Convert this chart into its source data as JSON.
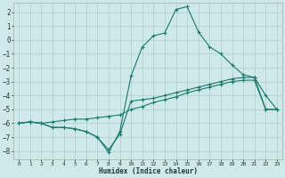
{
  "xlabel": "Humidex (Indice chaleur)",
  "background_color": "#cfe8e8",
  "grid_color": "#aacfcf",
  "line_color": "#1a7a6e",
  "xlim": [
    -0.5,
    23.5
  ],
  "ylim": [
    -8.6,
    2.7
  ],
  "xticks": [
    0,
    1,
    2,
    3,
    4,
    5,
    6,
    7,
    8,
    9,
    10,
    11,
    12,
    13,
    14,
    15,
    16,
    17,
    18,
    19,
    20,
    21,
    22,
    23
  ],
  "yticks": [
    -8,
    -7,
    -6,
    -5,
    -4,
    -3,
    -2,
    -1,
    0,
    1,
    2
  ],
  "series1_x": [
    0,
    1,
    2,
    3,
    4,
    5,
    6,
    7,
    8,
    9,
    10,
    11,
    12,
    13,
    14,
    15,
    16,
    17,
    18,
    19,
    20,
    21,
    22,
    23
  ],
  "series1_y": [
    -6.0,
    -5.9,
    -6.0,
    -5.9,
    -5.8,
    -5.7,
    -5.7,
    -5.6,
    -5.5,
    -5.4,
    -5.0,
    -4.8,
    -4.5,
    -4.3,
    -4.1,
    -3.8,
    -3.6,
    -3.4,
    -3.2,
    -3.0,
    -2.9,
    -2.9,
    -5.0,
    -5.0
  ],
  "series2_x": [
    0,
    1,
    2,
    3,
    4,
    5,
    6,
    7,
    8,
    9,
    10,
    11,
    12,
    13,
    14,
    15,
    16,
    17,
    18,
    19,
    20,
    21,
    22,
    23
  ],
  "series2_y": [
    -6.0,
    -5.9,
    -6.0,
    -6.3,
    -6.3,
    -6.4,
    -6.6,
    -7.0,
    -7.9,
    -6.8,
    -4.4,
    -4.3,
    -4.2,
    -4.0,
    -3.8,
    -3.6,
    -3.4,
    -3.2,
    -3.0,
    -2.8,
    -2.7,
    -2.7,
    -5.0,
    -5.0
  ],
  "series3_x": [
    0,
    1,
    2,
    3,
    4,
    5,
    6,
    7,
    8,
    9,
    10,
    11,
    12,
    13,
    14,
    15,
    16,
    17,
    18,
    19,
    20,
    21,
    22,
    23
  ],
  "series3_y": [
    -6.0,
    -5.9,
    -6.0,
    -6.3,
    -6.3,
    -6.4,
    -6.6,
    -7.0,
    -8.1,
    -6.6,
    -2.6,
    -0.5,
    0.3,
    0.5,
    2.2,
    2.4,
    0.6,
    -0.5,
    -1.0,
    -1.8,
    -2.5,
    -2.7,
    -4.0,
    -5.0
  ]
}
